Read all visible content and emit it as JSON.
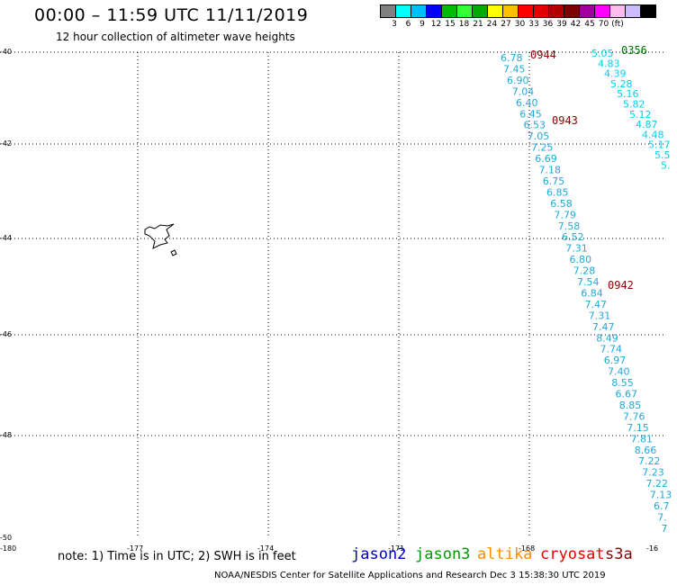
{
  "header": {
    "title": "00:00 – 11:59 UTC 11/11/2019",
    "subtitle": "12 hour collection of altimeter wave heights"
  },
  "legend": {
    "colors": [
      "#808080",
      "#00ffff",
      "#00bfff",
      "#0000ff",
      "#00bb00",
      "#33ff33",
      "#00aa00",
      "#ffff00",
      "#ffc000",
      "#ff0000",
      "#e00000",
      "#b00000",
      "#800000",
      "#a000a0",
      "#ff00ff",
      "#ffbbee",
      "#ccbbff",
      "#000000"
    ],
    "labels": [
      "3",
      "6",
      "9",
      "12",
      "15",
      "18",
      "21",
      "24",
      "27",
      "30",
      "33",
      "36",
      "39",
      "42",
      "45",
      "70",
      "(ft)"
    ]
  },
  "map": {
    "lat_labels": [
      "-40",
      "-42",
      "-44",
      "-46",
      "-48",
      "-50"
    ],
    "lon_labels": [
      "-180",
      "-177",
      "-174",
      "-171",
      "-168",
      "-16"
    ],
    "time_labels": [
      {
        "text": "0944",
        "color": "#8b0000"
      },
      {
        "text": "0943",
        "color": "#8b0000"
      },
      {
        "text": "0942",
        "color": "#8b0000"
      },
      {
        "text": "0356",
        "color": "#007700"
      }
    ],
    "track_a_color": "#1fa8d8",
    "track_a_values": [
      "6.78",
      "7.45",
      "6.90",
      "7.04",
      "6.40",
      "6.45",
      "6.53",
      "7.05",
      "7.25",
      "6.69",
      "7.18",
      "6.75",
      "6.85",
      "6.58",
      "7.79",
      "7.58",
      "6.52",
      "7.31",
      "6.80",
      "7.28",
      "7.54",
      "6.84",
      "7.47",
      "7.31",
      "7.47",
      "8.49",
      "7.74",
      "6.97",
      "7.40",
      "8.55",
      "6.67",
      "8.85",
      "7.76",
      "7.15",
      "7.81",
      "8.66",
      "7.22",
      "7.23",
      "7.22",
      "7.13",
      "6.7",
      "7.",
      "7"
    ],
    "track_b_color": "#00d0f0",
    "track_b_values": [
      "5.05",
      "4.83",
      "4.39",
      "5.28",
      "5.16",
      "5.82",
      "5.12",
      "4.87",
      "4.48",
      "5.17",
      "5.5",
      "5."
    ]
  },
  "footer": {
    "note": "note: 1) Time is in UTC; 2) SWH is in feet",
    "satellites": [
      {
        "name": "jason2",
        "color": "#0000cc"
      },
      {
        "name": "jason3",
        "color": "#009900"
      },
      {
        "name": "altika",
        "color": "#ff8c00"
      },
      {
        "name": "cryosat",
        "color": "#ee0000"
      },
      {
        "name": "s3a",
        "color": "#8b0000"
      }
    ],
    "credit": "NOAA/NESDIS Center for Satellite Applications and Research    Dec  3 15:38:30 UTC 2019"
  }
}
